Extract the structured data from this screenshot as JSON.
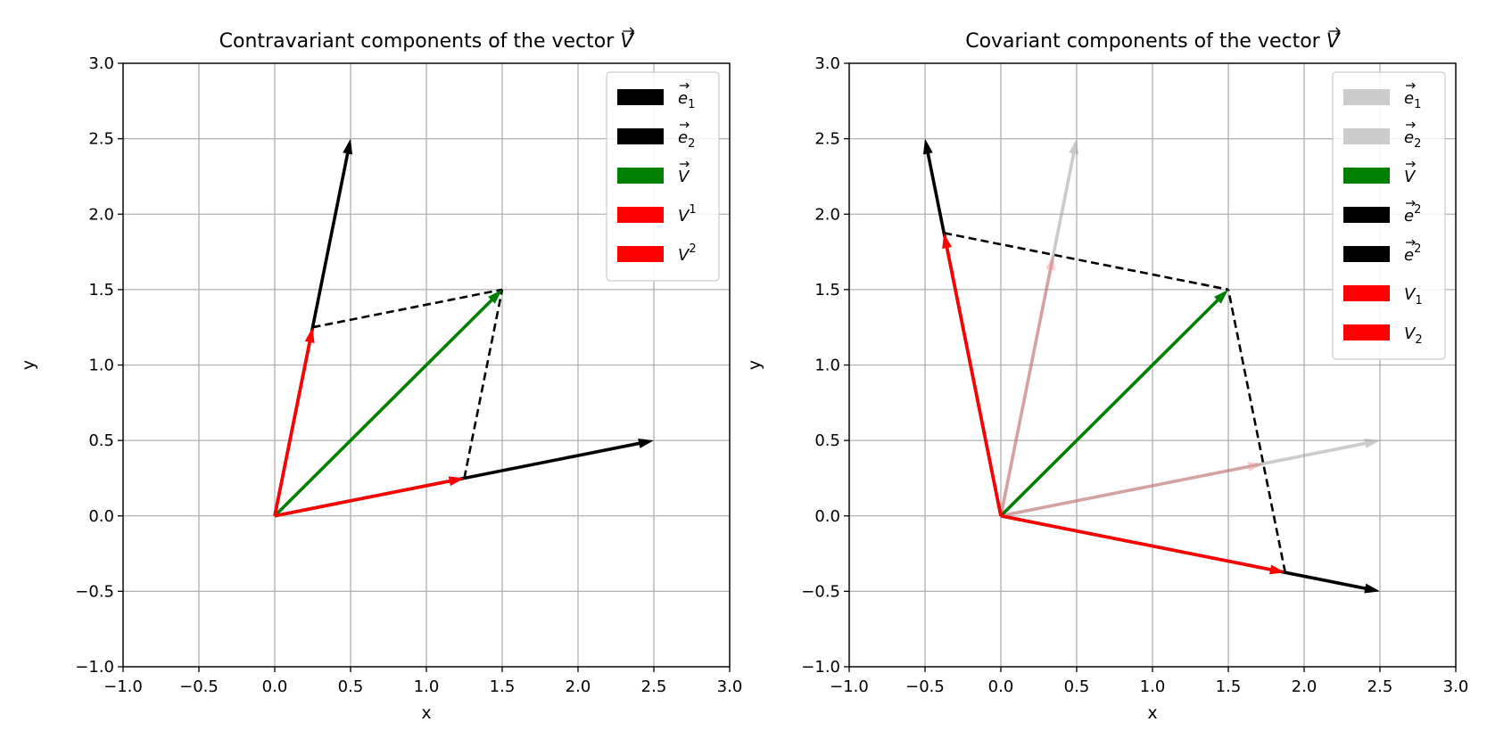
{
  "chart_data": [
    {
      "type": "line",
      "title": "Contravariant components of the vector V⃗",
      "title_text": "Contravariant components of the vector ",
      "title_symbol": "V",
      "xlabel": "x",
      "ylabel": "y",
      "xlim": [
        -1.0,
        3.0
      ],
      "ylim": [
        -1.0,
        3.0
      ],
      "xticks": [
        "−1.0",
        "−0.5",
        "0.0",
        "0.5",
        "1.0",
        "1.5",
        "2.0",
        "2.5",
        "3.0"
      ],
      "yticks": [
        "−1.0",
        "−0.5",
        "0.0",
        "0.5",
        "1.0",
        "1.5",
        "2.0",
        "2.5",
        "3.0"
      ],
      "grid": true,
      "legend_position": "top-right",
      "vectors": [
        {
          "from": [
            0,
            0
          ],
          "to": [
            2.5,
            0.5
          ],
          "color": "#000000",
          "opacity": 1,
          "legend": {
            "base": "e",
            "arrow": true,
            "sub": "1",
            "sup": ""
          }
        },
        {
          "from": [
            0,
            0
          ],
          "to": [
            0.5,
            2.5
          ],
          "color": "#000000",
          "opacity": 1,
          "legend": {
            "base": "e",
            "arrow": true,
            "sub": "2",
            "sup": ""
          }
        },
        {
          "from": [
            0,
            0
          ],
          "to": [
            1.5,
            1.5
          ],
          "color": "#008000",
          "opacity": 1,
          "legend": {
            "base": "V",
            "arrow": true,
            "sub": "",
            "sup": ""
          }
        },
        {
          "from": [
            0,
            0
          ],
          "to": [
            1.25,
            0.25
          ],
          "color": "#ff0000",
          "opacity": 1,
          "legend": {
            "base": "V",
            "arrow": false,
            "sub": "",
            "sup": "1"
          }
        },
        {
          "from": [
            0,
            0
          ],
          "to": [
            0.25,
            1.25
          ],
          "color": "#ff0000",
          "opacity": 1,
          "legend": {
            "base": "V",
            "arrow": false,
            "sub": "",
            "sup": "2"
          }
        }
      ],
      "dashed_lines": [
        {
          "from": [
            1.25,
            0.25
          ],
          "to": [
            1.5,
            1.5
          ]
        },
        {
          "from": [
            0.25,
            1.25
          ],
          "to": [
            1.5,
            1.5
          ]
        }
      ]
    },
    {
      "type": "line",
      "title": "Covariant components of the vector V⃗",
      "title_text": "Covariant components of the vector ",
      "title_symbol": "V",
      "xlabel": "x",
      "ylabel": "y",
      "xlim": [
        -1.0,
        3.0
      ],
      "ylim": [
        -1.0,
        3.0
      ],
      "xticks": [
        "−1.0",
        "−0.5",
        "0.0",
        "0.5",
        "1.0",
        "1.5",
        "2.0",
        "2.5",
        "3.0"
      ],
      "yticks": [
        "−1.0",
        "−0.5",
        "0.0",
        "0.5",
        "1.0",
        "1.5",
        "2.0",
        "2.5",
        "3.0"
      ],
      "grid": true,
      "legend_position": "top-right",
      "vectors": [
        {
          "from": [
            0,
            0
          ],
          "to": [
            2.5,
            0.5
          ],
          "color": "#a0a0a0",
          "opacity": 0.55,
          "legend": {
            "base": "e",
            "arrow": true,
            "sub": "1",
            "sup": ""
          }
        },
        {
          "from": [
            0,
            0
          ],
          "to": [
            0.5,
            2.5
          ],
          "color": "#a0a0a0",
          "opacity": 0.55,
          "legend": {
            "base": "e",
            "arrow": true,
            "sub": "2",
            "sup": ""
          }
        },
        {
          "from": [
            0,
            0
          ],
          "to": [
            1.5,
            1.5
          ],
          "color": "#008000",
          "opacity": 1,
          "legend": {
            "base": "V",
            "arrow": true,
            "sub": "",
            "sup": ""
          }
        },
        {
          "from": [
            0,
            0
          ],
          "to": [
            2.5,
            -0.5
          ],
          "color": "#000000",
          "opacity": 1,
          "legend": {
            "base": "e",
            "arrow": true,
            "sub": "",
            "sup": "2"
          }
        },
        {
          "from": [
            0,
            0
          ],
          "to": [
            -0.5,
            2.5
          ],
          "color": "#000000",
          "opacity": 1,
          "legend": {
            "base": "e",
            "arrow": true,
            "sub": "",
            "sup": "2"
          }
        },
        {
          "from": [
            0,
            0
          ],
          "to": [
            1.875,
            -0.375
          ],
          "color": "#ff0000",
          "opacity": 1,
          "legend": {
            "base": "V",
            "arrow": false,
            "sub": "1",
            "sup": ""
          }
        },
        {
          "from": [
            0,
            0
          ],
          "to": [
            -0.375,
            1.875
          ],
          "color": "#ff0000",
          "opacity": 1,
          "legend": {
            "base": "V",
            "arrow": false,
            "sub": "2",
            "sup": ""
          }
        },
        {
          "from": [
            0,
            0
          ],
          "to": [
            1.731,
            0.346
          ],
          "color": "#ff0000",
          "opacity": 0.2,
          "legend": null
        },
        {
          "from": [
            0,
            0
          ],
          "to": [
            0.346,
            1.731
          ],
          "color": "#ff0000",
          "opacity": 0.2,
          "legend": null
        }
      ],
      "dashed_lines": [
        {
          "from": [
            1.875,
            -0.375
          ],
          "to": [
            1.5,
            1.5
          ]
        },
        {
          "from": [
            -0.375,
            1.875
          ],
          "to": [
            1.5,
            1.5
          ]
        }
      ]
    }
  ]
}
